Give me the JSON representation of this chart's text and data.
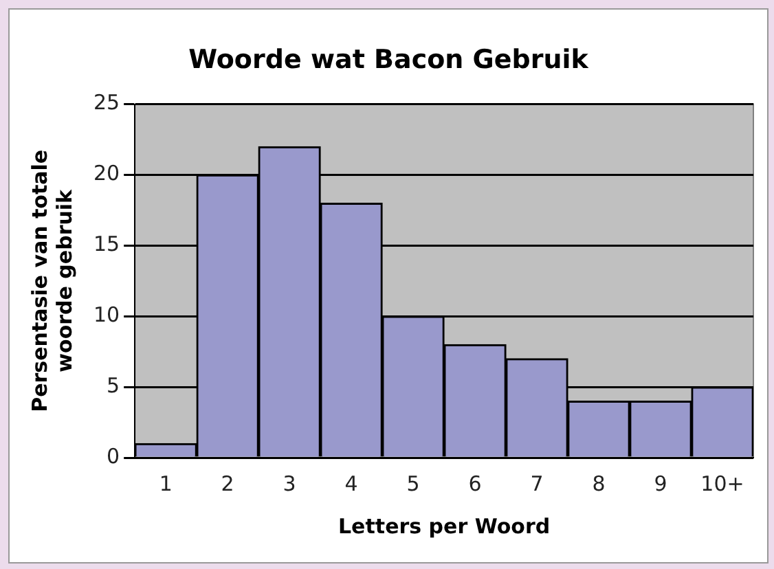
{
  "chart_data": {
    "type": "bar",
    "title": "Woorde wat Bacon Gebruik",
    "xlabel": "Letters per Woord",
    "ylabel": "Persentasie van totale\nwoorde gebruik",
    "categories": [
      "1",
      "2",
      "3",
      "4",
      "5",
      "6",
      "7",
      "8",
      "9",
      "10+"
    ],
    "values": [
      1,
      20,
      22,
      18,
      10,
      8,
      7,
      4,
      4,
      5
    ],
    "color": "#9999cc",
    "ylim": [
      0,
      25
    ],
    "yticks": [
      0,
      5,
      10,
      15,
      20,
      25
    ],
    "grid": "y",
    "legend": false
  }
}
